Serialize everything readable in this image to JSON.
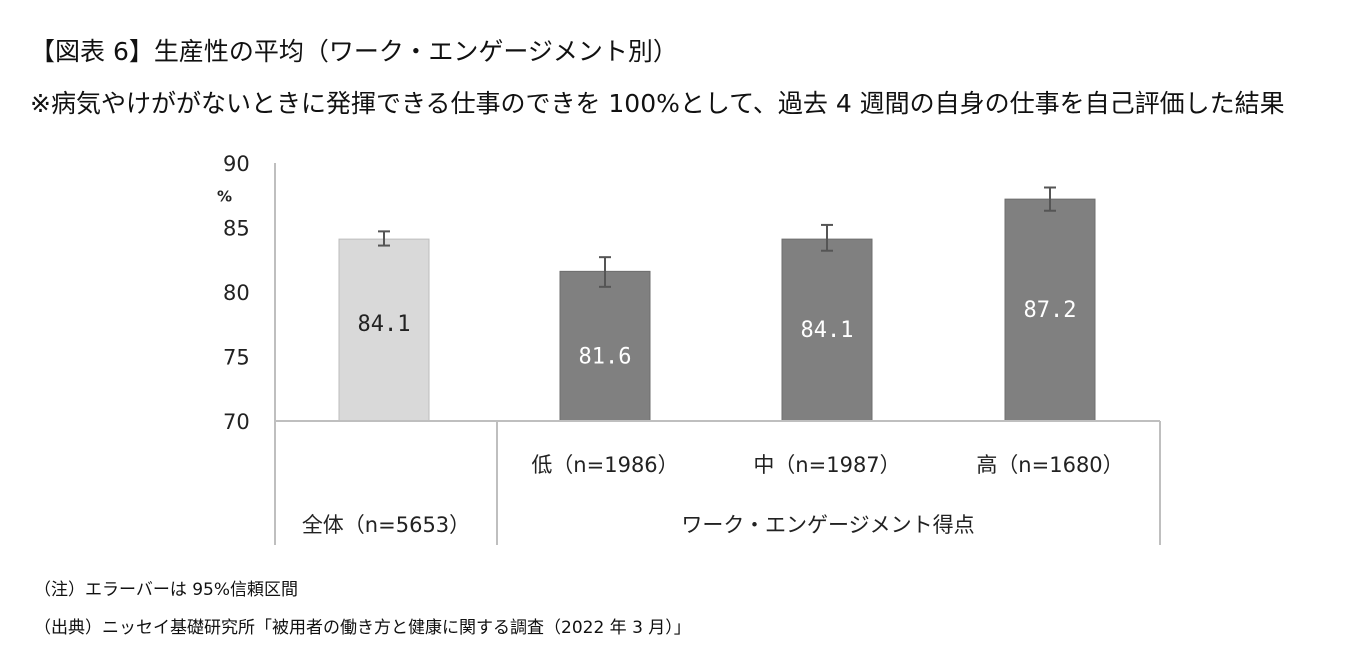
{
  "title": "【図表 6】生産性の平均（ワーク・エンゲージメント別）",
  "subtitle": "※病気やけががないときに発揮できる仕事のできを 100%として、過去 4 週間の自身の仕事を自己評価した結果",
  "notes": {
    "error_bar": "（注）エラーバーは 95%信頼区間",
    "source": "（出典）ニッセイ基礎研究所「被用者の働き方と健康に関する調査（2022 年 3 月）」"
  },
  "colors": {
    "overall_bar": "#d9d9d9",
    "group_bar": "#808080",
    "axis": "#bfbfbf",
    "label_dark": "#222222",
    "label_light": "#ffffff"
  },
  "chart_data": {
    "type": "bar",
    "categories": [
      "全体（n=5653）",
      "低（n=1986）",
      "中（n=1987）",
      "高（n=1680）"
    ],
    "values": [
      84.1,
      81.6,
      84.1,
      87.2
    ],
    "value_labels": [
      "84.1",
      "81.6",
      "84.1",
      "87.2"
    ],
    "error_low": [
      83.6,
      80.4,
      83.2,
      86.3
    ],
    "error_high": [
      84.7,
      82.7,
      85.2,
      88.1
    ],
    "group_label": "ワーク・エンゲージメント得点",
    "ylabel": "%",
    "ylim": [
      70,
      90
    ],
    "yticks": [
      70,
      75,
      80,
      85,
      90
    ],
    "ytick_labels": [
      "70",
      "75",
      "80",
      "85",
      "90"
    ],
    "legend": "none",
    "grid": false
  }
}
